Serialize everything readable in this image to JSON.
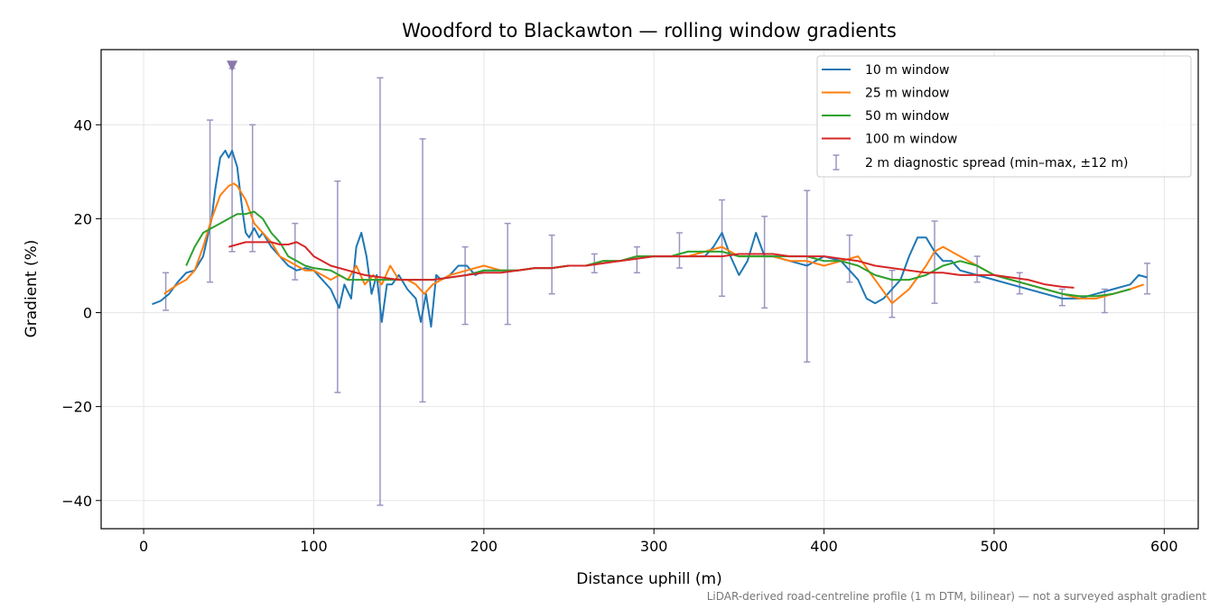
{
  "chart_data": {
    "type": "line",
    "title": "Woodford to Blackawton — rolling window gradients",
    "xlabel": "Distance uphill (m)",
    "ylabel": "Gradient (%)",
    "xlim": [
      -25,
      620
    ],
    "ylim": [
      -46,
      56
    ],
    "xticks": [
      0,
      100,
      200,
      300,
      400,
      500,
      600
    ],
    "yticks": [
      -40,
      -20,
      0,
      20,
      40
    ],
    "xtick_labels": [
      "0",
      "100",
      "200",
      "300",
      "400",
      "500",
      "600"
    ],
    "ytick_labels": [
      "−40",
      "−20",
      "0",
      "20",
      "40"
    ],
    "grid": true,
    "legend_position": "top-right",
    "footnote": "LiDAR-derived road-centreline profile (1 m DTM, bilinear) — not a surveyed asphalt gradient",
    "series": [
      {
        "name": "10 m window",
        "color": "#1f77b4",
        "x": [
          5,
          10,
          15,
          20,
          25,
          30,
          35,
          40,
          42,
          45,
          48,
          50,
          52,
          55,
          58,
          60,
          62,
          65,
          68,
          70,
          75,
          80,
          85,
          90,
          95,
          100,
          105,
          110,
          115,
          118,
          122,
          125,
          128,
          131,
          134,
          137,
          140,
          143,
          146,
          150,
          155,
          160,
          163,
          166,
          169,
          172,
          175,
          180,
          185,
          190,
          195,
          200,
          210,
          220,
          230,
          240,
          250,
          260,
          270,
          280,
          290,
          300,
          310,
          320,
          330,
          335,
          340,
          345,
          350,
          355,
          360,
          365,
          370,
          380,
          390,
          400,
          410,
          420,
          425,
          430,
          435,
          440,
          445,
          450,
          455,
          460,
          465,
          470,
          475,
          480,
          490,
          500,
          510,
          520,
          530,
          540,
          550,
          560,
          570,
          580,
          585,
          590
        ],
        "y": [
          1.8,
          2.5,
          4,
          6.5,
          8.5,
          9,
          12,
          20,
          26,
          33,
          34.5,
          33,
          34.5,
          31,
          22,
          17,
          16,
          18,
          16,
          17,
          14,
          12,
          10,
          9,
          9.5,
          9,
          7,
          5,
          1,
          6,
          3,
          14,
          17,
          12,
          4,
          8,
          -2,
          6,
          6,
          8,
          5,
          3,
          -2,
          4,
          -3,
          8,
          7,
          8,
          10,
          10,
          8,
          9,
          9,
          9,
          9.5,
          9.5,
          10,
          10,
          11,
          11,
          12,
          12,
          12,
          12,
          12,
          14,
          17,
          12,
          8,
          11,
          17,
          12,
          12,
          11,
          10,
          12,
          11,
          7,
          3,
          2,
          3,
          5,
          7,
          12,
          16,
          16,
          13,
          11,
          11,
          9,
          8,
          7,
          6,
          5,
          4,
          3,
          3,
          4,
          5,
          6,
          8,
          7.5
        ]
      },
      {
        "name": "25 m window",
        "color": "#ff7f0e",
        "x": [
          12,
          20,
          25,
          30,
          35,
          40,
          45,
          50,
          53,
          55,
          60,
          65,
          70,
          75,
          80,
          85,
          90,
          95,
          100,
          105,
          110,
          115,
          120,
          125,
          130,
          135,
          140,
          145,
          150,
          155,
          160,
          165,
          170,
          175,
          180,
          190,
          200,
          210,
          220,
          230,
          240,
          250,
          260,
          270,
          280,
          290,
          300,
          310,
          320,
          330,
          340,
          350,
          360,
          370,
          380,
          390,
          400,
          410,
          420,
          430,
          440,
          450,
          460,
          465,
          470,
          480,
          490,
          500,
          510,
          520,
          530,
          540,
          550,
          560,
          570,
          580,
          588
        ],
        "y": [
          4,
          6,
          7,
          9,
          14,
          20,
          25,
          27,
          27.5,
          27,
          24,
          19,
          17,
          15,
          12,
          11,
          10,
          9,
          9,
          8,
          7,
          8,
          7,
          10,
          6,
          8,
          6,
          10,
          7,
          7,
          6,
          4,
          6,
          7,
          8,
          9,
          10,
          9,
          9,
          9.5,
          9.5,
          10,
          10,
          11,
          11,
          12,
          12,
          12,
          12,
          13,
          14,
          12,
          12,
          12,
          11,
          11,
          10,
          11,
          12,
          7,
          2,
          5,
          10,
          13,
          14,
          12,
          10,
          8,
          7,
          6,
          5,
          4,
          3,
          3,
          4,
          5,
          6
        ]
      },
      {
        "name": "50 m window",
        "color": "#2ca02c",
        "x": [
          25,
          30,
          35,
          40,
          45,
          50,
          55,
          60,
          65,
          70,
          75,
          80,
          85,
          90,
          95,
          100,
          110,
          120,
          130,
          140,
          150,
          160,
          170,
          180,
          190,
          200,
          210,
          220,
          230,
          240,
          250,
          260,
          270,
          280,
          290,
          300,
          310,
          320,
          330,
          340,
          350,
          360,
          370,
          380,
          390,
          400,
          410,
          420,
          430,
          440,
          450,
          460,
          470,
          480,
          490,
          500,
          510,
          520,
          530,
          540,
          550,
          560,
          570,
          580
        ],
        "y": [
          10,
          14,
          17,
          18,
          19,
          20,
          21,
          21,
          21.5,
          20,
          17,
          15,
          12,
          11,
          10,
          9.5,
          9,
          7,
          7,
          7,
          7,
          7,
          7,
          7.5,
          8,
          9,
          9,
          9,
          9.5,
          9.5,
          10,
          10,
          11,
          11,
          12,
          12,
          12,
          13,
          13,
          13,
          12,
          12,
          12,
          12,
          12,
          11,
          11,
          10,
          8,
          7,
          7,
          8,
          10,
          11,
          10,
          8,
          7,
          6,
          5,
          4,
          3.5,
          3.5,
          4,
          5
        ]
      },
      {
        "name": "100 m window",
        "color": "#d62728",
        "x": [
          50,
          55,
          60,
          65,
          70,
          75,
          80,
          85,
          90,
          95,
          100,
          110,
          120,
          130,
          140,
          150,
          160,
          170,
          180,
          190,
          200,
          210,
          220,
          230,
          240,
          250,
          260,
          270,
          280,
          290,
          300,
          310,
          320,
          330,
          340,
          350,
          360,
          370,
          380,
          390,
          400,
          410,
          420,
          430,
          440,
          450,
          460,
          470,
          480,
          490,
          500,
          510,
          520,
          530,
          540,
          547
        ],
        "y": [
          14,
          14.5,
          15,
          15,
          15,
          15,
          14.5,
          14.5,
          15,
          14,
          12,
          10,
          9,
          8,
          7.5,
          7,
          7,
          7,
          7.5,
          8,
          8.5,
          8.5,
          9,
          9.5,
          9.5,
          10,
          10,
          10.5,
          11,
          11.5,
          12,
          12,
          12,
          12,
          12,
          12.5,
          12.5,
          12.5,
          12,
          12,
          12,
          11.5,
          11,
          10,
          9.5,
          9,
          8.5,
          8.5,
          8,
          8,
          8,
          7.5,
          7,
          6,
          5.5,
          5.3
        ]
      }
    ],
    "error_bars": {
      "name": "2 m diagnostic spread (min–max, ±12 m)",
      "color": "#9b95c0",
      "x": [
        13,
        39,
        52,
        64,
        89,
        114,
        139,
        164,
        189,
        214,
        240,
        265,
        290,
        315,
        340,
        365,
        390,
        415,
        440,
        465,
        490,
        515,
        540,
        565,
        590
      ],
      "low": [
        0.5,
        6.5,
        13,
        13,
        7,
        -17,
        -41,
        -19,
        -2.5,
        -2.5,
        4,
        8.5,
        8.5,
        9.5,
        3.5,
        1,
        -10.5,
        6.5,
        -1,
        2,
        6.5,
        4,
        1.5,
        0,
        4
      ],
      "high": [
        8.5,
        41,
        52,
        40,
        19,
        28,
        50,
        37,
        14,
        19,
        16.5,
        12.5,
        14,
        17,
        24,
        20.5,
        26,
        16.5,
        9,
        19.5,
        12,
        8.5,
        5,
        5,
        10.5
      ]
    },
    "marker": {
      "x": 52,
      "y": 52.5,
      "shape": "triangle-down",
      "color": "#8878a8"
    }
  }
}
